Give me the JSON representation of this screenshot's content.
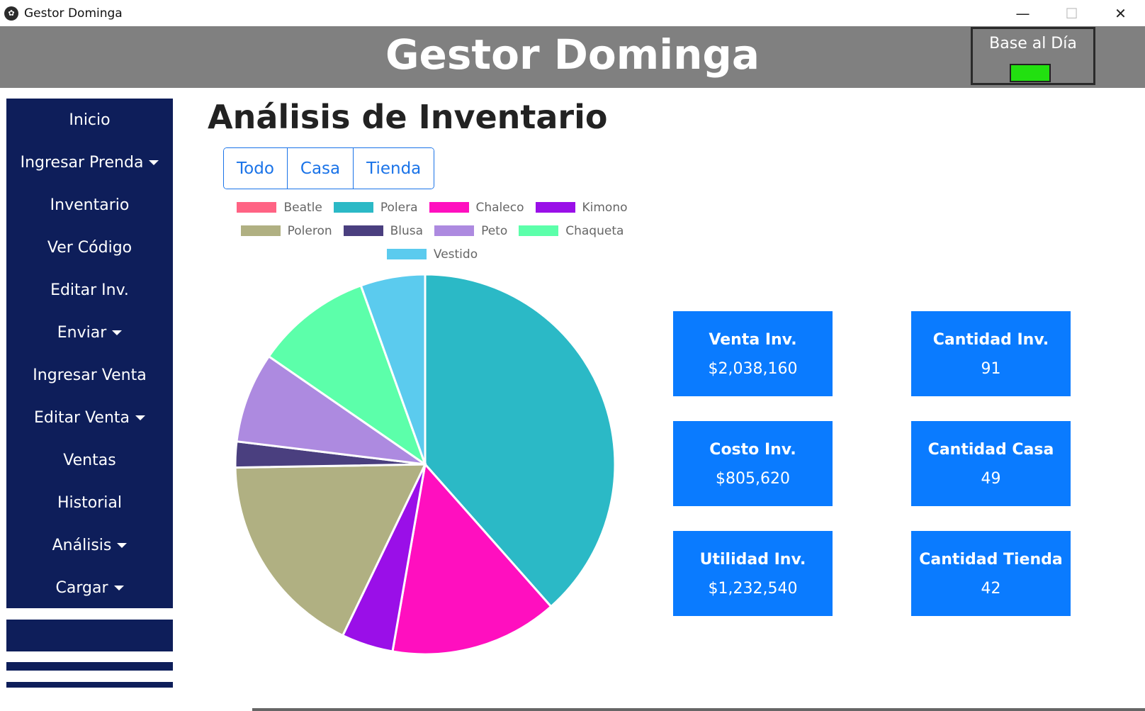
{
  "window": {
    "title": "Gestor Dominga",
    "icon": "app-logo-icon",
    "controls": [
      "minimize",
      "maximize",
      "close"
    ]
  },
  "header": {
    "title": "Gestor Dominga",
    "status_label": "Base al Día",
    "status_color": "#22e010"
  },
  "sidebar": {
    "items": [
      {
        "label": "Inicio",
        "dropdown": false
      },
      {
        "label": "Ingresar Prenda",
        "dropdown": true
      },
      {
        "label": "Inventario",
        "dropdown": false
      },
      {
        "label": "Ver Código",
        "dropdown": false
      },
      {
        "label": "Editar Inv.",
        "dropdown": false
      },
      {
        "label": "Enviar",
        "dropdown": true
      },
      {
        "label": "Ingresar Venta",
        "dropdown": false
      },
      {
        "label": "Editar Venta",
        "dropdown": true
      },
      {
        "label": "Ventas",
        "dropdown": false
      },
      {
        "label": "Historial",
        "dropdown": false
      },
      {
        "label": "Análisis",
        "dropdown": true
      },
      {
        "label": "Cargar",
        "dropdown": true
      }
    ]
  },
  "main": {
    "title": "Análisis de Inventario",
    "filters": [
      "Todo",
      "Casa",
      "Tienda"
    ]
  },
  "chart_data": {
    "type": "pie",
    "categories": [
      "Beatle",
      "Polera",
      "Chaleco",
      "Kimono",
      "Poleron",
      "Blusa",
      "Peto",
      "Chaqueta",
      "Vestido"
    ],
    "values": [
      0,
      35,
      13,
      4,
      16,
      2,
      7,
      9,
      5
    ],
    "colors": [
      "#ff6384",
      "#2bb9c6",
      "#ff0fbf",
      "#9a0fe8",
      "#b0b082",
      "#4a3f7f",
      "#ad8ae0",
      "#5cffaa",
      "#5bcbee"
    ],
    "legend": "top"
  },
  "stats": {
    "venta": {
      "label": "Venta Inv.",
      "value": "$2,038,160"
    },
    "costo": {
      "label": "Costo Inv.",
      "value": "$805,620"
    },
    "utilidad": {
      "label": "Utilidad Inv.",
      "value": "$1,232,540"
    },
    "cantidad": {
      "label": "Cantidad Inv.",
      "value": "91"
    },
    "casa": {
      "label": "Cantidad Casa",
      "value": "49"
    },
    "tienda": {
      "label": "Cantidad Tienda",
      "value": "42"
    }
  },
  "accent_color": "#0a7bff",
  "sidebar_color": "#0e1e5a"
}
